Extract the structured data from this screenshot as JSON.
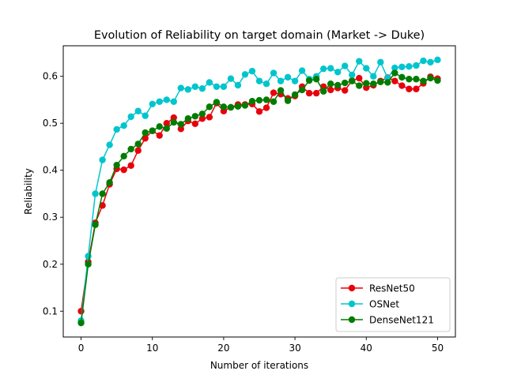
{
  "chart_data": {
    "type": "line",
    "title": "Evolution of Reliability on target domain (Market -> Duke)",
    "xlabel": "Number of iterations",
    "ylabel": "Reliability",
    "xlim": [
      -2.5,
      52.5
    ],
    "ylim": [
      0.045,
      0.665
    ],
    "xticks": [
      0,
      10,
      20,
      30,
      40,
      50
    ],
    "yticks": [
      0.1,
      0.2,
      0.3,
      0.4,
      0.5,
      0.6
    ],
    "grid": false,
    "legend_position": "lower-right",
    "x": [
      0,
      1,
      2,
      3,
      4,
      5,
      6,
      7,
      8,
      9,
      10,
      11,
      12,
      13,
      14,
      15,
      16,
      17,
      18,
      19,
      20,
      21,
      22,
      23,
      24,
      25,
      26,
      27,
      28,
      29,
      30,
      31,
      32,
      33,
      34,
      35,
      36,
      37,
      38,
      39,
      40,
      41,
      42,
      43,
      44,
      45,
      46,
      47,
      48,
      49,
      50
    ],
    "series": [
      {
        "name": "ResNet50",
        "color": "#e8000b",
        "values": [
          0.1,
          0.205,
          0.288,
          0.325,
          0.37,
          0.403,
          0.401,
          0.41,
          0.442,
          0.468,
          0.484,
          0.474,
          0.5,
          0.512,
          0.488,
          0.505,
          0.499,
          0.51,
          0.513,
          0.543,
          0.526,
          0.534,
          0.54,
          0.54,
          0.541,
          0.525,
          0.533,
          0.565,
          0.562,
          0.553,
          0.558,
          0.578,
          0.564,
          0.564,
          0.578,
          0.571,
          0.575,
          0.57,
          0.591,
          0.596,
          0.576,
          0.581,
          0.59,
          0.597,
          0.59,
          0.58,
          0.573,
          0.573,
          0.585,
          0.599,
          0.595
        ]
      },
      {
        "name": "OSNet",
        "color": "#00c5cd",
        "values": [
          0.08,
          0.217,
          0.35,
          0.422,
          0.454,
          0.487,
          0.495,
          0.514,
          0.526,
          0.516,
          0.541,
          0.546,
          0.55,
          0.546,
          0.575,
          0.572,
          0.578,
          0.574,
          0.587,
          0.578,
          0.578,
          0.595,
          0.581,
          0.604,
          0.611,
          0.59,
          0.584,
          0.607,
          0.59,
          0.598,
          0.59,
          0.612,
          0.594,
          0.6,
          0.616,
          0.617,
          0.609,
          0.622,
          0.603,
          0.632,
          0.617,
          0.6,
          0.63,
          0.596,
          0.618,
          0.62,
          0.621,
          0.623,
          0.633,
          0.63,
          0.635
        ]
      },
      {
        "name": "DenseNet121",
        "color": "#007d00",
        "values": [
          0.075,
          0.2,
          0.284,
          0.35,
          0.374,
          0.411,
          0.43,
          0.445,
          0.456,
          0.48,
          0.484,
          0.493,
          0.489,
          0.502,
          0.498,
          0.51,
          0.515,
          0.52,
          0.535,
          0.545,
          0.535,
          0.534,
          0.536,
          0.538,
          0.547,
          0.549,
          0.55,
          0.546,
          0.57,
          0.548,
          0.561,
          0.571,
          0.591,
          0.594,
          0.568,
          0.584,
          0.581,
          0.586,
          0.59,
          0.58,
          0.585,
          0.584,
          0.588,
          0.587,
          0.607,
          0.598,
          0.594,
          0.594,
          0.59,
          0.596,
          0.591
        ]
      }
    ]
  }
}
